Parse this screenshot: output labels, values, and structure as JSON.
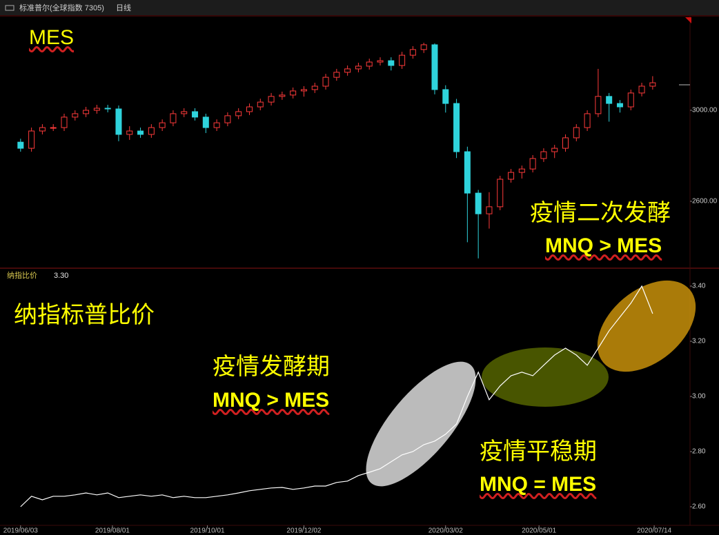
{
  "header": {
    "title": "标准普尔(全球指数 7305)",
    "period": "日线"
  },
  "chart_data": [
    {
      "type": "candlestick",
      "title": "MES",
      "x": [
        "2019/06/03",
        "2019/06/10",
        "2019/06/17",
        "2019/06/24",
        "2019/07/01",
        "2019/07/08",
        "2019/07/15",
        "2019/07/22",
        "2019/07/29",
        "2019/08/05",
        "2019/08/12",
        "2019/08/19",
        "2019/08/26",
        "2019/09/02",
        "2019/09/09",
        "2019/09/16",
        "2019/09/23",
        "2019/09/30",
        "2019/10/07",
        "2019/10/14",
        "2019/10/21",
        "2019/10/28",
        "2019/11/04",
        "2019/11/11",
        "2019/11/18",
        "2019/11/25",
        "2019/12/02",
        "2019/12/09",
        "2019/12/16",
        "2019/12/23",
        "2019/12/30",
        "2020/01/06",
        "2020/01/13",
        "2020/01/20",
        "2020/01/27",
        "2020/02/03",
        "2020/02/10",
        "2020/02/17",
        "2020/02/24",
        "2020/03/02",
        "2020/03/09",
        "2020/03/16",
        "2020/03/23",
        "2020/03/30",
        "2020/04/06",
        "2020/04/13",
        "2020/04/20",
        "2020/04/27",
        "2020/05/04",
        "2020/05/11",
        "2020/05/18",
        "2020/05/25",
        "2020/06/01",
        "2020/06/08",
        "2020/06/15",
        "2020/06/22",
        "2020/06/29",
        "2020/07/06",
        "2020/07/13"
      ],
      "open": [
        2860,
        2833,
        2909,
        2924,
        2924,
        2970,
        2985,
        3000,
        3009,
        3006,
        2894,
        2909,
        2894,
        2924,
        2945,
        2985,
        2994,
        2970,
        2924,
        2945,
        2976,
        2994,
        3015,
        3036,
        3061,
        3067,
        3085,
        3091,
        3106,
        3145,
        3167,
        3182,
        3194,
        3212,
        3218,
        3197,
        3242,
        3267,
        3288,
        3091,
        3030,
        2818,
        2636,
        2545,
        2576,
        2697,
        2727,
        2742,
        2788,
        2818,
        2833,
        2879,
        2924,
        2985,
        3061,
        3030,
        3015,
        3076,
        3106
      ],
      "high": [
        2875,
        2924,
        2939,
        2939,
        2985,
        3000,
        3015,
        3024,
        3024,
        3021,
        2930,
        2924,
        2939,
        2960,
        3000,
        3009,
        3009,
        2985,
        2960,
        2991,
        3009,
        3030,
        3051,
        3076,
        3082,
        3100,
        3106,
        3121,
        3160,
        3182,
        3197,
        3209,
        3227,
        3233,
        3233,
        3257,
        3282,
        3297,
        3294,
        3110,
        3050,
        2840,
        2650,
        2640,
        2712,
        2742,
        2757,
        2803,
        2833,
        2848,
        2894,
        2939,
        3000,
        3182,
        3076,
        3045,
        3091,
        3121,
        3150
      ],
      "low": [
        2818,
        2818,
        2894,
        2909,
        2909,
        2955,
        2970,
        2985,
        2991,
        2864,
        2870,
        2879,
        2879,
        2909,
        2930,
        2970,
        2955,
        2900,
        2909,
        2930,
        2961,
        2979,
        3000,
        3021,
        3046,
        3052,
        3060,
        3076,
        3091,
        3130,
        3152,
        3167,
        3179,
        3197,
        3175,
        3182,
        3227,
        3252,
        3070,
        2990,
        2790,
        2420,
        2349,
        2480,
        2561,
        2682,
        2700,
        2727,
        2773,
        2790,
        2818,
        2864,
        2909,
        2970,
        2950,
        2990,
        3000,
        3061,
        3091
      ],
      "close": [
        2833,
        2909,
        2924,
        2924,
        2970,
        2985,
        3000,
        3009,
        3006,
        2894,
        2909,
        2894,
        2924,
        2945,
        2985,
        2994,
        2970,
        2924,
        2945,
        2976,
        2994,
        3015,
        3036,
        3061,
        3067,
        3085,
        3091,
        3106,
        3145,
        3167,
        3182,
        3194,
        3212,
        3218,
        3197,
        3242,
        3267,
        3288,
        3091,
        3030,
        2818,
        2636,
        2545,
        2576,
        2697,
        2727,
        2742,
        2788,
        2818,
        2833,
        2879,
        2924,
        2985,
        3061,
        3030,
        3015,
        3076,
        3106,
        3121
      ],
      "up_color": "#ff3b3b",
      "down_color": "#2fd3dc",
      "xlim": [
        "2019/05/23",
        "2020/08/06"
      ],
      "ylim": [
        2309,
        3409
      ],
      "yticks": [
        {
          "value": 3000,
          "label": "3000.00"
        },
        {
          "value": 2600,
          "label": "2600.00"
        }
      ],
      "annotations": [
        "疫情二次发酵",
        "MNQ > MES"
      ]
    },
    {
      "type": "line",
      "indicator": "纳指比价",
      "last_value": {
        "value": 3.3,
        "label": "3.30"
      },
      "title": "纳指标普比价",
      "x": [
        "2019/06/03",
        "2019/06/10",
        "2019/06/17",
        "2019/06/24",
        "2019/07/01",
        "2019/07/08",
        "2019/07/15",
        "2019/07/22",
        "2019/07/29",
        "2019/08/05",
        "2019/08/12",
        "2019/08/19",
        "2019/08/26",
        "2019/09/02",
        "2019/09/09",
        "2019/09/16",
        "2019/09/23",
        "2019/09/30",
        "2019/10/07",
        "2019/10/14",
        "2019/10/21",
        "2019/10/28",
        "2019/11/04",
        "2019/11/11",
        "2019/11/18",
        "2019/11/25",
        "2019/12/02",
        "2019/12/09",
        "2019/12/16",
        "2019/12/23",
        "2019/12/30",
        "2020/01/06",
        "2020/01/13",
        "2020/01/20",
        "2020/01/27",
        "2020/02/03",
        "2020/02/10",
        "2020/02/17",
        "2020/02/24",
        "2020/03/02",
        "2020/03/09",
        "2020/03/16",
        "2020/03/23",
        "2020/03/30",
        "2020/04/06",
        "2020/04/13",
        "2020/04/20",
        "2020/04/27",
        "2020/05/04",
        "2020/05/11",
        "2020/05/18",
        "2020/05/25",
        "2020/06/01",
        "2020/06/08",
        "2020/06/15",
        "2020/06/22",
        "2020/06/29",
        "2020/07/06",
        "2020/07/13"
      ],
      "values": [
        2.6,
        2.638,
        2.625,
        2.638,
        2.638,
        2.643,
        2.65,
        2.643,
        2.65,
        2.633,
        2.638,
        2.643,
        2.638,
        2.643,
        2.633,
        2.638,
        2.633,
        2.633,
        2.638,
        2.643,
        2.65,
        2.658,
        2.663,
        2.668,
        2.67,
        2.663,
        2.668,
        2.675,
        2.675,
        2.688,
        2.693,
        2.713,
        2.725,
        2.738,
        2.763,
        2.788,
        2.8,
        2.825,
        2.838,
        2.863,
        2.9,
        3.0,
        3.088,
        2.988,
        3.038,
        3.075,
        3.088,
        3.075,
        3.113,
        3.15,
        3.175,
        3.15,
        3.113,
        3.175,
        3.238,
        3.288,
        3.338,
        3.4,
        3.3
      ],
      "color": "#ffffff",
      "xlim": [
        "2019/05/23",
        "2020/08/06"
      ],
      "ylim": [
        2.5375,
        3.4625
      ],
      "yticks": [
        {
          "value": 3.4,
          "label": "3.40"
        },
        {
          "value": 3.2,
          "label": "3.20"
        },
        {
          "value": 3.0,
          "label": "3.00"
        },
        {
          "value": 2.8,
          "label": "2.80"
        },
        {
          "value": 2.6,
          "label": "2.60"
        }
      ],
      "xticks": [
        "2019/06/03",
        "2019/08/01",
        "2019/10/01",
        "2019/12/02",
        "2020/03/02",
        "2020/05/01",
        "2020/07/14"
      ],
      "annotations": [
        "疫情发酵期",
        "MNQ > MES",
        "疫情平稳期",
        "MNQ = MES"
      ]
    }
  ]
}
